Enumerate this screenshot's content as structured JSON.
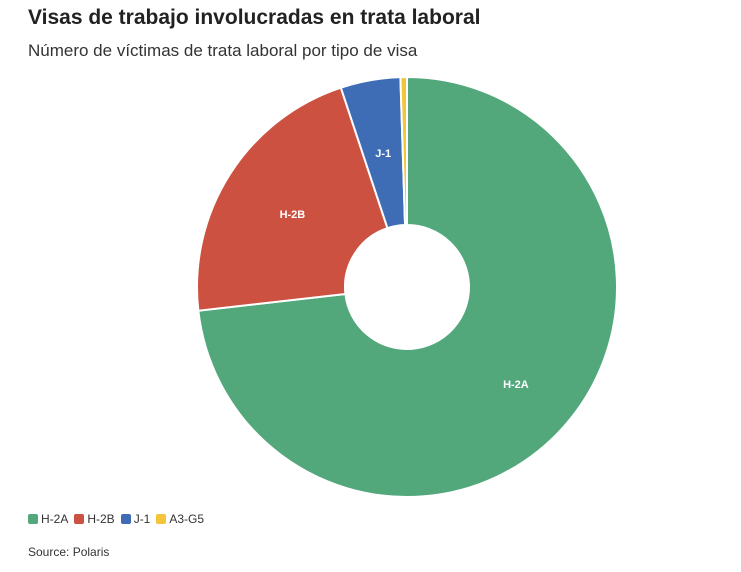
{
  "chart_data": {
    "type": "pie",
    "title": "Visas de trabajo involucradas en trata laboral",
    "subtitle": "Número de víctimas de trata laboral por tipo de visa",
    "donut": true,
    "slices": [
      {
        "label": "H-2A",
        "value": 73.2,
        "color": "#52a77b"
      },
      {
        "label": "H-2B",
        "value": 21.7,
        "color": "#cc5140"
      },
      {
        "label": "J-1",
        "value": 4.6,
        "color": "#3e6db5"
      },
      {
        "label": "A3-G5",
        "value": 0.5,
        "color": "#f4c43a"
      }
    ],
    "legend_position": "bottom-left",
    "source": "Source: Polaris"
  }
}
